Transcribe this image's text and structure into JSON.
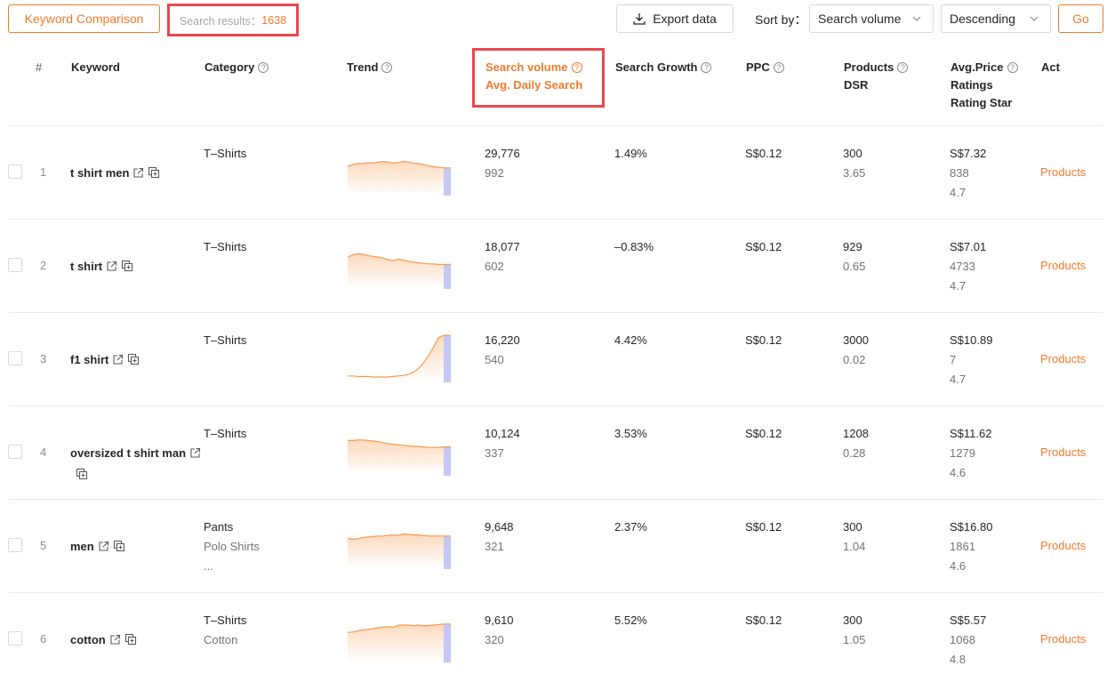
{
  "toolbar": {
    "compare_label": "Keyword Comparison",
    "results_label": "Search results：",
    "results_count": "1638",
    "export_label": "Export data",
    "sort_label": "Sort by：",
    "sort_field": "Search volume",
    "sort_order": "Descending",
    "go_label": "Go"
  },
  "header": {
    "idx": "#",
    "keyword": "Keyword",
    "category": "Category",
    "trend": "Trend",
    "search_volume": "Search volume",
    "avg_daily": "Avg. Daily Search",
    "growth": "Search Growth",
    "ppc": "PPC",
    "products": "Products",
    "dsr": "DSR",
    "price": "Avg.Price",
    "ratings": "Ratings",
    "rating_star": "Rating Star",
    "act": "Act"
  },
  "rows": [
    {
      "idx": "1",
      "keyword": "t shirt men",
      "cat1": "T–Shirts",
      "cat2": "",
      "cat3": "",
      "volume": "29,776",
      "daily": "992",
      "growth": "1.49%",
      "ppc": "S$0.12",
      "products": "300",
      "dsr": "3.65",
      "price": "S$7.32",
      "ratings": "838",
      "star": "4.7",
      "act": "Products",
      "trend": [
        0.55,
        0.58,
        0.6,
        0.6,
        0.62,
        0.61,
        0.63,
        0.64,
        0.63,
        0.61,
        0.62,
        0.64,
        0.63,
        0.61,
        0.6,
        0.58,
        0.56,
        0.54,
        0.53,
        0.52
      ]
    },
    {
      "idx": "2",
      "keyword": "t shirt",
      "cat1": "T–Shirts",
      "cat2": "",
      "cat3": "",
      "volume": "18,077",
      "daily": "602",
      "growth": "–0.83%",
      "ppc": "S$0.12",
      "products": "929",
      "dsr": "0.65",
      "price": "S$7.01",
      "ratings": "4733",
      "star": "4.7",
      "act": "Products",
      "trend": [
        0.6,
        0.64,
        0.66,
        0.65,
        0.63,
        0.61,
        0.6,
        0.58,
        0.55,
        0.53,
        0.56,
        0.54,
        0.52,
        0.5,
        0.49,
        0.48,
        0.47,
        0.47,
        0.46,
        0.46
      ]
    },
    {
      "idx": "3",
      "keyword": "f1 shirt",
      "cat1": "T–Shirts",
      "cat2": "",
      "cat3": "",
      "volume": "16,220",
      "daily": "540",
      "growth": "4.42%",
      "ppc": "S$0.12",
      "products": "3000",
      "dsr": "0.02",
      "price": "S$10.89",
      "ratings": "7",
      "star": "4.7",
      "act": "Products",
      "trend": [
        0.12,
        0.12,
        0.11,
        0.11,
        0.11,
        0.1,
        0.1,
        0.1,
        0.1,
        0.11,
        0.12,
        0.13,
        0.15,
        0.19,
        0.26,
        0.36,
        0.5,
        0.66,
        0.84,
        0.88
      ]
    },
    {
      "idx": "4",
      "keyword": "oversized t shirt man",
      "cat1": "T–Shirts",
      "cat2": "",
      "cat3": "",
      "volume": "10,124",
      "daily": "337",
      "growth": "3.53%",
      "ppc": "S$0.12",
      "products": "1208",
      "dsr": "0.28",
      "price": "S$11.62",
      "ratings": "1279",
      "star": "4.6",
      "act": "Products",
      "trend": [
        0.66,
        0.66,
        0.67,
        0.67,
        0.66,
        0.65,
        0.64,
        0.62,
        0.6,
        0.59,
        0.58,
        0.57,
        0.56,
        0.55,
        0.55,
        0.54,
        0.53,
        0.53,
        0.53,
        0.54
      ]
    },
    {
      "idx": "5",
      "keyword": "men",
      "cat1": "Pants",
      "cat2": "Polo Shirts",
      "cat3": "...",
      "volume": "9,648",
      "daily": "321",
      "growth": "2.37%",
      "ppc": "S$0.12",
      "products": "300",
      "dsr": "1.04",
      "price": "S$16.80",
      "ratings": "1861",
      "star": "4.6",
      "act": "Products",
      "trend": [
        0.58,
        0.56,
        0.57,
        0.59,
        0.6,
        0.61,
        0.62,
        0.62,
        0.63,
        0.64,
        0.63,
        0.66,
        0.65,
        0.64,
        0.64,
        0.63,
        0.62,
        0.62,
        0.62,
        0.62
      ]
    },
    {
      "idx": "6",
      "keyword": "cotton",
      "cat1": "T–Shirts",
      "cat2": "Cotton",
      "cat3": "",
      "volume": "9,610",
      "daily": "320",
      "growth": "5.52%",
      "ppc": "S$0.12",
      "products": "300",
      "dsr": "1.05",
      "price": "S$5.57",
      "ratings": "1068",
      "star": "4.8",
      "act": "Products",
      "trend": [
        0.56,
        0.57,
        0.59,
        0.61,
        0.62,
        0.63,
        0.65,
        0.66,
        0.67,
        0.66,
        0.7,
        0.7,
        0.7,
        0.69,
        0.7,
        0.69,
        0.69,
        0.7,
        0.71,
        0.72
      ]
    }
  ]
}
